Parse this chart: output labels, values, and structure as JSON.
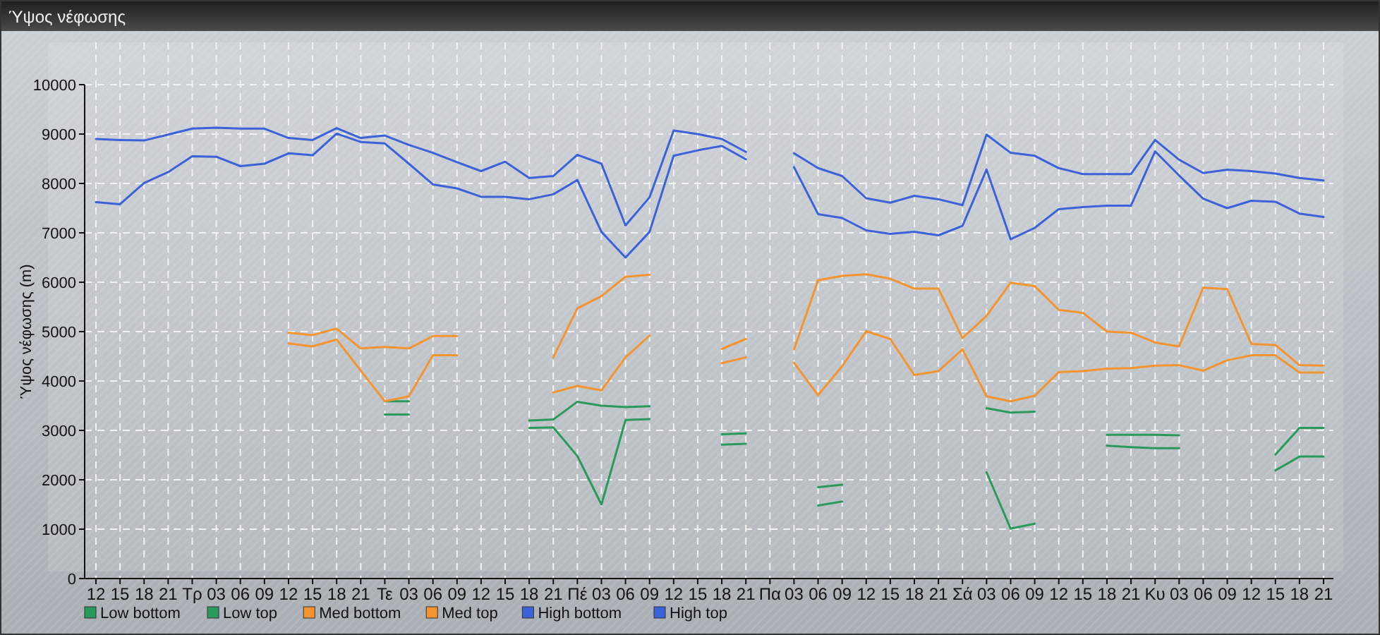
{
  "chart_data": {
    "type": "line",
    "title": "Ύψος νέφωσης",
    "ylabel": "Ύψος νέφωσης (m)",
    "categories": [
      "12",
      "15",
      "18",
      "21",
      "Τρ",
      "03",
      "06",
      "09",
      "12",
      "15",
      "18",
      "21",
      "Τε",
      "03",
      "06",
      "09",
      "12",
      "15",
      "18",
      "21",
      "Πέ",
      "03",
      "06",
      "09",
      "12",
      "15",
      "18",
      "21",
      "Πα",
      "03",
      "06",
      "09",
      "12",
      "15",
      "18",
      "21",
      "Σά",
      "03",
      "06",
      "09",
      "12",
      "15",
      "18",
      "21",
      "Κυ",
      "03",
      "06",
      "09",
      "12",
      "15",
      "18",
      "21"
    ],
    "ylim": [
      0,
      10000
    ],
    "yticks": [
      0,
      1000,
      2000,
      3000,
      4000,
      5000,
      6000,
      7000,
      8000,
      9000,
      10000
    ],
    "grid": true,
    "legend": "bottom",
    "line_style": "solid",
    "marker": "none",
    "series": [
      {
        "name": "Low bottom",
        "color": "#2a9a5c",
        "values": [
          null,
          null,
          null,
          null,
          null,
          null,
          null,
          null,
          null,
          null,
          null,
          null,
          3320,
          3320,
          null,
          null,
          null,
          null,
          3050,
          3060,
          2480,
          1500,
          3210,
          3230,
          null,
          null,
          2710,
          2730,
          null,
          null,
          1480,
          1560,
          null,
          null,
          null,
          null,
          null,
          2150,
          1010,
          1110,
          null,
          null,
          2690,
          2660,
          2640,
          2640,
          null,
          null,
          null,
          2190,
          2470,
          2470
        ]
      },
      {
        "name": "Low top",
        "color": "#2a9a5c",
        "values": [
          null,
          null,
          null,
          null,
          null,
          null,
          null,
          null,
          null,
          null,
          null,
          null,
          3590,
          3590,
          null,
          null,
          null,
          null,
          3200,
          3220,
          3580,
          3500,
          3470,
          3490,
          null,
          null,
          2920,
          2940,
          null,
          null,
          1850,
          1900,
          null,
          null,
          null,
          null,
          null,
          3450,
          3360,
          3380,
          null,
          null,
          2910,
          2910,
          2910,
          2900,
          null,
          null,
          null,
          2510,
          3050,
          3050
        ]
      },
      {
        "name": "Med bottom",
        "color": "#f39430",
        "values": [
          null,
          null,
          null,
          null,
          null,
          null,
          null,
          null,
          4760,
          4700,
          4840,
          4210,
          3590,
          3690,
          4520,
          4520,
          null,
          null,
          null,
          3770,
          3900,
          3810,
          4480,
          4920,
          null,
          null,
          4360,
          4480,
          null,
          4370,
          3710,
          4300,
          5010,
          4850,
          4120,
          4200,
          4640,
          3690,
          3590,
          3700,
          4180,
          4200,
          4250,
          4260,
          4310,
          4320,
          4210,
          4420,
          4520,
          4520,
          4170,
          4170
        ]
      },
      {
        "name": "Med top",
        "color": "#f39430",
        "values": [
          null,
          null,
          null,
          null,
          null,
          null,
          null,
          null,
          4980,
          4930,
          5060,
          4660,
          4690,
          4660,
          4910,
          4910,
          null,
          null,
          null,
          4480,
          5470,
          5720,
          6110,
          6150,
          null,
          null,
          4650,
          4850,
          null,
          4640,
          6040,
          6130,
          6160,
          6070,
          5870,
          5870,
          4870,
          5320,
          5990,
          5920,
          5440,
          5380,
          5000,
          4980,
          4780,
          4700,
          5890,
          5860,
          4750,
          4730,
          4320,
          4310
        ]
      },
      {
        "name": "High bottom",
        "color": "#3b62d8",
        "values": [
          7620,
          7580,
          8010,
          8230,
          8550,
          8540,
          8350,
          8400,
          8610,
          8570,
          9010,
          8840,
          8810,
          8400,
          7980,
          7900,
          7730,
          7730,
          7680,
          7780,
          8070,
          7020,
          6500,
          7020,
          8560,
          8670,
          8760,
          8490,
          null,
          8330,
          7380,
          7300,
          7050,
          6980,
          7020,
          6950,
          7140,
          8280,
          6870,
          7100,
          7480,
          7520,
          7550,
          7550,
          8650,
          8160,
          7690,
          7500,
          7650,
          7630,
          7390,
          7320
        ]
      },
      {
        "name": "High top",
        "color": "#3b62d8",
        "values": [
          8900,
          8880,
          8870,
          8990,
          9110,
          9130,
          9110,
          9110,
          8920,
          8880,
          9120,
          8920,
          8970,
          8780,
          8620,
          8430,
          8250,
          8440,
          8110,
          8150,
          8580,
          8400,
          7150,
          7720,
          9070,
          9000,
          8900,
          8640,
          null,
          8610,
          8310,
          8150,
          7700,
          7610,
          7750,
          7680,
          7560,
          8990,
          8620,
          8560,
          8310,
          8190,
          8190,
          8190,
          8880,
          8480,
          8210,
          8280,
          8250,
          8200,
          8110,
          8060
        ]
      }
    ]
  }
}
